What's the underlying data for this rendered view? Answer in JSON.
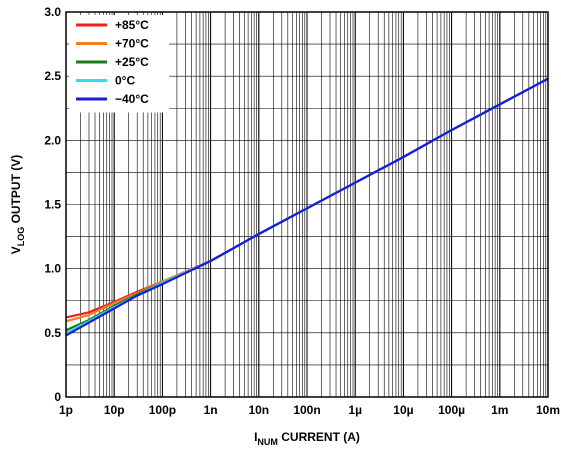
{
  "chart_data": {
    "type": "line",
    "xscale": "log",
    "xlim": [
      1e-12,
      0.01
    ],
    "ylim": [
      0,
      3.0
    ],
    "grid": true,
    "legend_position": "top-left",
    "xlabel": {
      "prefix": "I",
      "sub": "NUM",
      "suffix": " CURRENT (A)"
    },
    "ylabel": {
      "prefix": "V",
      "sub": "LOG",
      "suffix": " OUTPUT (V)"
    },
    "x_ticks": [
      {
        "value": 1e-12,
        "label": "1p"
      },
      {
        "value": 1e-11,
        "label": "10p"
      },
      {
        "value": 1e-10,
        "label": "100p"
      },
      {
        "value": 1e-09,
        "label": "1n"
      },
      {
        "value": 1e-08,
        "label": "10n"
      },
      {
        "value": 1e-07,
        "label": "100n"
      },
      {
        "value": 1e-06,
        "label": "1µ"
      },
      {
        "value": 1e-05,
        "label": "10µ"
      },
      {
        "value": 0.0001,
        "label": "100µ"
      },
      {
        "value": 0.001,
        "label": "1m"
      },
      {
        "value": 0.01,
        "label": "10m"
      }
    ],
    "y_ticks": [
      {
        "value": 0,
        "label": "0"
      },
      {
        "value": 0.5,
        "label": "0.5"
      },
      {
        "value": 1.0,
        "label": "1.0"
      },
      {
        "value": 1.5,
        "label": "1.5"
      },
      {
        "value": 2.0,
        "label": "2.0"
      },
      {
        "value": 2.5,
        "label": "2.5"
      },
      {
        "value": 3.0,
        "label": "3.0"
      }
    ],
    "series": [
      {
        "name": "+85°C",
        "color": "#e8231e",
        "x": [
          1e-12,
          3e-12,
          1e-11,
          3e-11,
          1e-10,
          1e-09,
          1e-08,
          1e-07,
          1e-06,
          1e-05,
          0.0001,
          0.001,
          0.01
        ],
        "y": [
          0.62,
          0.66,
          0.74,
          0.82,
          0.9,
          1.06,
          1.27,
          1.47,
          1.67,
          1.87,
          2.08,
          2.28,
          2.48
        ]
      },
      {
        "name": "+70°C",
        "color": "#f57f20",
        "x": [
          1e-12,
          3e-12,
          1e-11,
          3e-11,
          1e-10,
          1e-09,
          1e-08,
          1e-07,
          1e-06,
          1e-05,
          0.0001,
          0.001,
          0.01
        ],
        "y": [
          0.59,
          0.64,
          0.73,
          0.81,
          0.9,
          1.06,
          1.27,
          1.47,
          1.67,
          1.87,
          2.08,
          2.28,
          2.48
        ]
      },
      {
        "name": "+25°C",
        "color": "#1f7a1f",
        "x": [
          1e-12,
          3e-12,
          1e-11,
          3e-11,
          1e-10,
          1e-09,
          1e-08,
          1e-07,
          1e-06,
          1e-05,
          0.0001,
          0.001,
          0.01
        ],
        "y": [
          0.52,
          0.6,
          0.71,
          0.8,
          0.89,
          1.06,
          1.27,
          1.47,
          1.67,
          1.87,
          2.08,
          2.28,
          2.48
        ]
      },
      {
        "name": "0°C",
        "color": "#33ddee",
        "x": [
          1e-12,
          3e-12,
          1e-11,
          3e-11,
          1e-10,
          1e-09,
          1e-08,
          1e-07,
          1e-06,
          1e-05,
          0.0001,
          0.001,
          0.01
        ],
        "y": [
          0.5,
          0.59,
          0.7,
          0.79,
          0.89,
          1.06,
          1.27,
          1.47,
          1.67,
          1.87,
          2.08,
          2.28,
          2.48
        ]
      },
      {
        "name": "−40°C",
        "color": "#1a1adc",
        "x": [
          1e-12,
          3e-12,
          1e-11,
          3e-11,
          1e-10,
          1e-09,
          1e-08,
          1e-07,
          1e-06,
          1e-05,
          0.0001,
          0.001,
          0.01
        ],
        "y": [
          0.48,
          0.58,
          0.69,
          0.79,
          0.88,
          1.06,
          1.27,
          1.47,
          1.67,
          1.87,
          2.08,
          2.28,
          2.48
        ]
      }
    ]
  }
}
